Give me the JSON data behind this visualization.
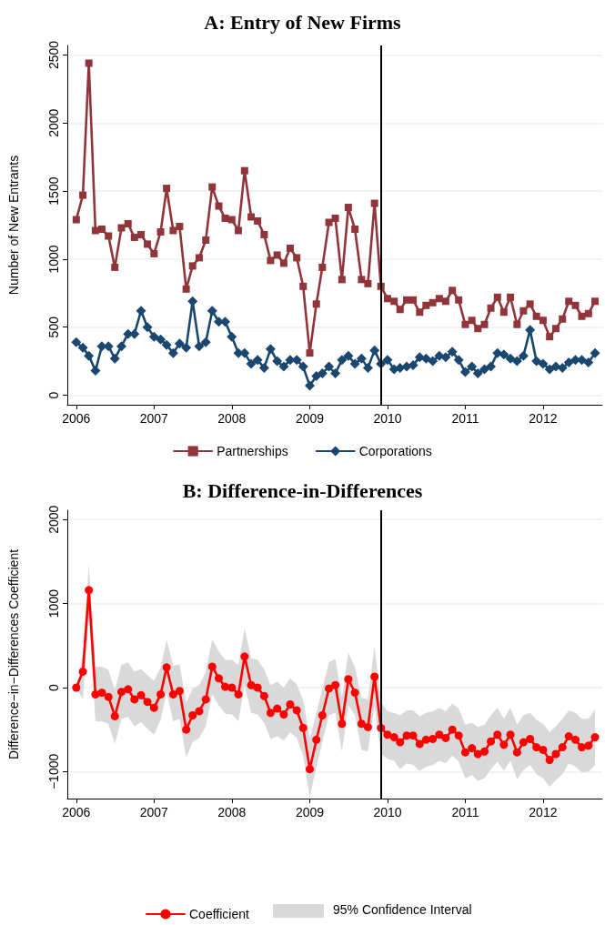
{
  "chart_data": [
    {
      "type": "line",
      "title": "A: Entry of New Firms",
      "ylabel": "Number of New Entrants",
      "x": [
        "2006-01",
        "2006-02",
        "2006-03",
        "2006-04",
        "2006-05",
        "2006-06",
        "2006-07",
        "2006-08",
        "2006-09",
        "2006-10",
        "2006-11",
        "2006-12",
        "2007-01",
        "2007-02",
        "2007-03",
        "2007-04",
        "2007-05",
        "2007-06",
        "2007-07",
        "2007-08",
        "2007-09",
        "2007-10",
        "2007-11",
        "2007-12",
        "2008-01",
        "2008-02",
        "2008-03",
        "2008-04",
        "2008-05",
        "2008-06",
        "2008-07",
        "2008-08",
        "2008-09",
        "2008-10",
        "2008-11",
        "2008-12",
        "2009-01",
        "2009-02",
        "2009-03",
        "2009-04",
        "2009-05",
        "2009-06",
        "2009-07",
        "2009-08",
        "2009-09",
        "2009-10",
        "2009-11",
        "2009-12",
        "2010-01",
        "2010-02",
        "2010-03",
        "2010-04",
        "2010-05",
        "2010-06",
        "2010-07",
        "2010-08",
        "2010-09",
        "2010-10",
        "2010-11",
        "2010-12",
        "2011-01",
        "2011-02",
        "2011-03",
        "2011-04",
        "2011-05",
        "2011-06",
        "2011-07",
        "2011-08",
        "2011-09",
        "2011-10",
        "2011-11",
        "2011-12",
        "2012-01",
        "2012-02",
        "2012-03",
        "2012-04",
        "2012-05",
        "2012-06",
        "2012-07",
        "2012-08",
        "2012-09"
      ],
      "series": [
        {
          "name": "Partnerships",
          "color": "#903539",
          "marker": "square",
          "values": [
            1290,
            1470,
            2440,
            1210,
            1220,
            1170,
            940,
            1230,
            1260,
            1160,
            1180,
            1110,
            1040,
            1200,
            1520,
            1210,
            1240,
            780,
            950,
            1010,
            1140,
            1530,
            1390,
            1300,
            1290,
            1210,
            1650,
            1310,
            1280,
            1180,
            990,
            1030,
            970,
            1080,
            1010,
            800,
            310,
            670,
            940,
            1270,
            1300,
            850,
            1380,
            1220,
            850,
            820,
            1410,
            800,
            710,
            690,
            630,
            700,
            700,
            610,
            660,
            680,
            710,
            690,
            770,
            700,
            520,
            550,
            490,
            520,
            640,
            720,
            610,
            720,
            520,
            620,
            670,
            580,
            550,
            430,
            490,
            560,
            690,
            660,
            580,
            600,
            690
          ]
        },
        {
          "name": "Corporations",
          "color": "#1a476f",
          "marker": "diamond",
          "values": [
            390,
            350,
            290,
            180,
            360,
            360,
            270,
            360,
            450,
            450,
            620,
            500,
            430,
            410,
            370,
            310,
            380,
            350,
            690,
            360,
            390,
            620,
            540,
            540,
            430,
            310,
            310,
            230,
            260,
            200,
            340,
            250,
            210,
            260,
            260,
            210,
            70,
            140,
            160,
            210,
            160,
            260,
            290,
            230,
            270,
            200,
            330,
            230,
            260,
            190,
            200,
            210,
            220,
            280,
            270,
            250,
            290,
            280,
            320,
            260,
            170,
            210,
            160,
            190,
            210,
            310,
            300,
            270,
            250,
            290,
            480,
            250,
            230,
            190,
            210,
            200,
            240,
            260,
            260,
            240,
            310
          ]
        }
      ],
      "xlim": [
        "2005-11-20",
        "2012-10-05"
      ],
      "xticks": [
        "2006",
        "2007",
        "2008",
        "2009",
        "2010",
        "2011",
        "2012"
      ],
      "ylim": [
        -70,
        2570
      ],
      "yticks": [
        0,
        500,
        1000,
        1500,
        2000,
        2500
      ],
      "ref_lines": [
        {
          "axis": "x",
          "value": "2009-12",
          "color": "#000000"
        }
      ],
      "grid": "y",
      "legend": "bottom",
      "line_style": "solid"
    },
    {
      "type": "line",
      "title": "B: Difference-in-Differences",
      "ylabel": "Difference−in−Differences Coefficient",
      "x": [
        "2006-01",
        "2006-02",
        "2006-03",
        "2006-04",
        "2006-05",
        "2006-06",
        "2006-07",
        "2006-08",
        "2006-09",
        "2006-10",
        "2006-11",
        "2006-12",
        "2007-01",
        "2007-02",
        "2007-03",
        "2007-04",
        "2007-05",
        "2007-06",
        "2007-07",
        "2007-08",
        "2007-09",
        "2007-10",
        "2007-11",
        "2007-12",
        "2008-01",
        "2008-02",
        "2008-03",
        "2008-04",
        "2008-05",
        "2008-06",
        "2008-07",
        "2008-08",
        "2008-09",
        "2008-10",
        "2008-11",
        "2008-12",
        "2009-01",
        "2009-02",
        "2009-03",
        "2009-04",
        "2009-05",
        "2009-06",
        "2009-07",
        "2009-08",
        "2009-09",
        "2009-10",
        "2009-11",
        "2009-12",
        "2010-01",
        "2010-02",
        "2010-03",
        "2010-04",
        "2010-05",
        "2010-06",
        "2010-07",
        "2010-08",
        "2010-09",
        "2010-10",
        "2010-11",
        "2010-12",
        "2011-01",
        "2011-02",
        "2011-03",
        "2011-04",
        "2011-05",
        "2011-06",
        "2011-07",
        "2011-08",
        "2011-09",
        "2011-10",
        "2011-11",
        "2011-12",
        "2012-01",
        "2012-02",
        "2012-03",
        "2012-04",
        "2012-05",
        "2012-06",
        "2012-07",
        "2012-08",
        "2012-09"
      ],
      "series": [
        {
          "name": "Coefficient",
          "color": "#ff0000",
          "marker": "circle",
          "values": [
            0,
            190,
            1160,
            -80,
            -60,
            -110,
            -340,
            -50,
            -20,
            -140,
            -90,
            -170,
            -240,
            -80,
            240,
            -80,
            -40,
            -500,
            -330,
            -280,
            -140,
            250,
            110,
            10,
            0,
            -80,
            370,
            30,
            0,
            -100,
            -300,
            -250,
            -320,
            -200,
            -270,
            -480,
            -970,
            -620,
            -330,
            -10,
            30,
            -430,
            100,
            -60,
            -430,
            -470,
            130,
            -480,
            -560,
            -590,
            -650,
            -570,
            -570,
            -670,
            -620,
            -610,
            -560,
            -600,
            -500,
            -570,
            -770,
            -720,
            -790,
            -760,
            -640,
            -560,
            -680,
            -560,
            -770,
            -650,
            -610,
            -710,
            -740,
            -860,
            -790,
            -710,
            -580,
            -620,
            -710,
            -690,
            -590
          ],
          "upper": [
            0,
            420,
            1470,
            250,
            250,
            210,
            -30,
            270,
            300,
            190,
            220,
            150,
            80,
            240,
            570,
            260,
            280,
            -180,
            -10,
            30,
            190,
            570,
            430,
            330,
            330,
            270,
            710,
            350,
            330,
            220,
            30,
            70,
            0,
            110,
            40,
            -150,
            -600,
            -300,
            -10,
            300,
            340,
            -120,
            420,
            240,
            -120,
            -140,
            490,
            -170,
            -280,
            -300,
            -330,
            -270,
            -270,
            -340,
            -300,
            -280,
            -240,
            -280,
            -190,
            -250,
            -440,
            -420,
            -470,
            -440,
            -330,
            -240,
            -370,
            -240,
            -440,
            -330,
            -300,
            -380,
            -430,
            -530,
            -460,
            -370,
            -270,
            -300,
            -370,
            -370,
            -260
          ],
          "lower": [
            0,
            -140,
            840,
            -400,
            -400,
            -430,
            -670,
            -370,
            -350,
            -460,
            -410,
            -490,
            -560,
            -380,
            -60,
            -400,
            -370,
            -830,
            -650,
            -600,
            -460,
            -80,
            -210,
            -310,
            -320,
            -400,
            40,
            -300,
            -320,
            -420,
            -610,
            -580,
            -630,
            -530,
            -600,
            -810,
            -1310,
            -940,
            -650,
            -330,
            -300,
            -760,
            -210,
            -330,
            -740,
            -760,
            -220,
            -790,
            -850,
            -870,
            -970,
            -900,
            -920,
            -990,
            -940,
            -920,
            -870,
            -900,
            -810,
            -880,
            -1080,
            -1040,
            -1110,
            -1080,
            -970,
            -880,
            -990,
            -870,
            -1090,
            -980,
            -920,
            -1030,
            -1080,
            -1180,
            -1100,
            -1030,
            -900,
            -940,
            -1010,
            -1000,
            -920
          ]
        }
      ],
      "annotations": [
        "95% Confidence Interval"
      ],
      "xlim": [
        "2005-11-20",
        "2012-10-05"
      ],
      "xticks": [
        "2006",
        "2007",
        "2008",
        "2009",
        "2010",
        "2011",
        "2012"
      ],
      "ylim": [
        -1320,
        2110
      ],
      "yticks": [
        -1000,
        0,
        1000,
        2000
      ],
      "ref_lines": [
        {
          "axis": "x",
          "value": "2009-12",
          "color": "#000000"
        }
      ],
      "grid": "y",
      "legend": "bottom",
      "line_style": "solid"
    }
  ]
}
